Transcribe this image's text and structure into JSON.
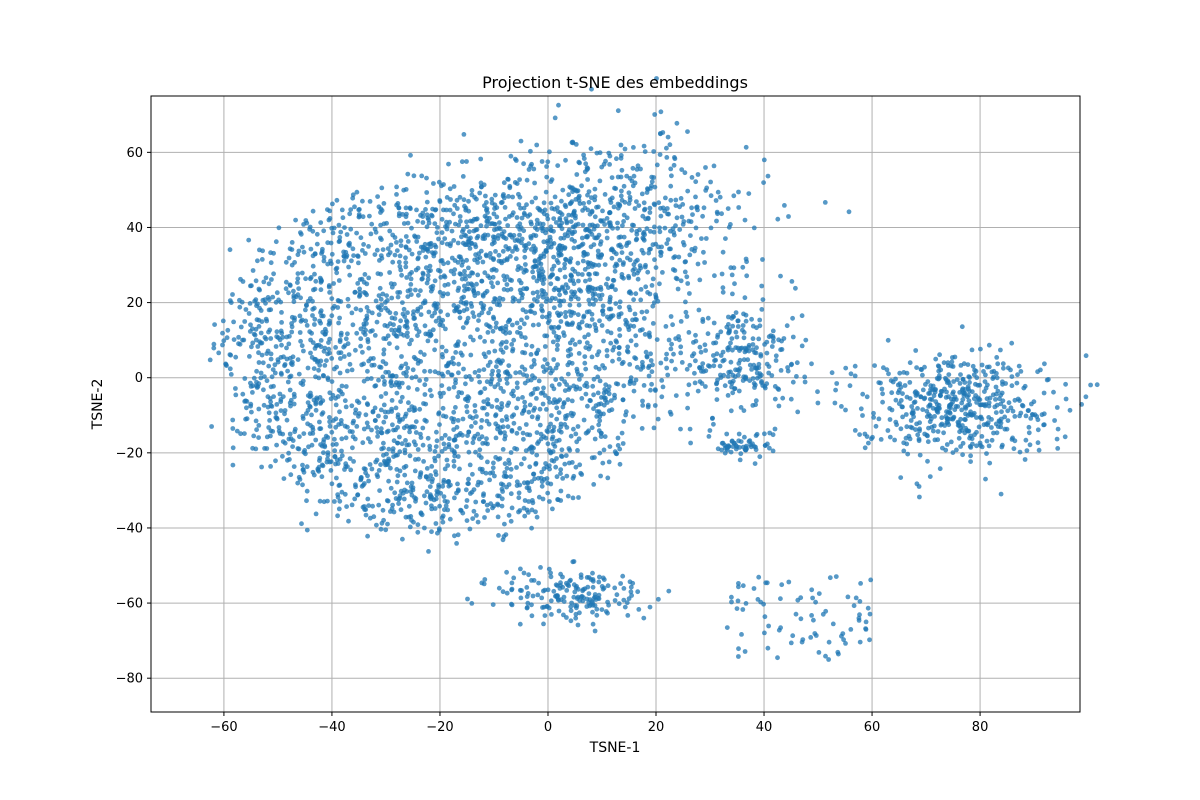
{
  "chart_data": {
    "type": "scatter",
    "title": "Projection t-SNE des embeddings",
    "xlabel": "TSNE-1",
    "ylabel": "TSNE-2",
    "xlim": [
      -73.5,
      98.5
    ],
    "ylim": [
      -89,
      75
    ],
    "xticks": [
      -60,
      -40,
      -20,
      0,
      20,
      40,
      60,
      80
    ],
    "yticks": [
      -80,
      -60,
      -40,
      -20,
      0,
      20,
      40,
      60
    ],
    "xtick_labels": [
      "−60",
      "−40",
      "−20",
      "0",
      "20",
      "40",
      "60",
      "80"
    ],
    "ytick_labels": [
      "−80",
      "−60",
      "−40",
      "−20",
      "0",
      "20",
      "40",
      "60"
    ],
    "grid": true,
    "point_color": "#1f77b4",
    "point_alpha": 0.75,
    "clusters_approx": [
      {
        "center": [
          -20,
          5
        ],
        "spread": [
          20,
          25
        ],
        "approx_count": 2600
      },
      {
        "center": [
          10,
          40
        ],
        "spread": [
          14,
          12
        ],
        "approx_count": 700
      },
      {
        "center": [
          35,
          5
        ],
        "spread": [
          6,
          8
        ],
        "approx_count": 250
      },
      {
        "center": [
          36,
          -18
        ],
        "spread": [
          3,
          2
        ],
        "approx_count": 60
      },
      {
        "center": [
          5,
          -58
        ],
        "spread": [
          7,
          4
        ],
        "approx_count": 180
      },
      {
        "center": [
          75,
          -7
        ],
        "spread": [
          9,
          7
        ],
        "approx_count": 500
      },
      {
        "center": [
          47,
          -64
        ],
        "spread": [
          10,
          8
        ],
        "approx_count": 80
      }
    ]
  }
}
